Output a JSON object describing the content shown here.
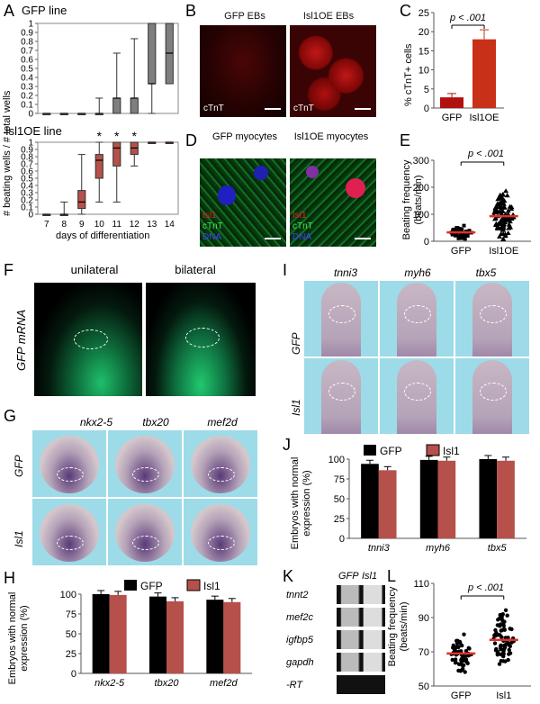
{
  "panels": {
    "A": {
      "letter": "A",
      "title_top": "GFP line",
      "title_bottom": "Isl1OE line",
      "ylabel": "# beating wells / # total wells",
      "xlabel": "days of differentiation",
      "days": [
        "7",
        "8",
        "9",
        "10",
        "11",
        "12",
        "13",
        "14"
      ],
      "yticks": [
        "0",
        "0.1",
        "0.2",
        "0.3",
        "0.4",
        "0.5",
        "0.6",
        "0.7",
        "0.8",
        "0.9",
        "1"
      ],
      "star": "*"
    },
    "B": {
      "letter": "B",
      "label_left": "GFP EBs",
      "label_right": "Isl1OE EBs",
      "stain": "cTnT"
    },
    "C": {
      "letter": "C",
      "ylabel": "% cTnT+ cells",
      "p": "p < .001",
      "cats": [
        "GFP",
        "Isl1OE"
      ]
    },
    "D": {
      "letter": "D",
      "label_left": "GFP myocytes",
      "label_right": "Isl1OE myocytes",
      "stain1": "Isl1",
      "stain2": "cTnT",
      "stain3": "DNA"
    },
    "E": {
      "letter": "E",
      "ylabel": "Beating frequency (beats/min)",
      "p": "p < .001",
      "cats": [
        "GFP",
        "Isl1OE"
      ]
    },
    "F": {
      "letter": "F",
      "label_left": "unilateral",
      "label_right": "bilateral",
      "ylabel": "GFP mRNA"
    },
    "G": {
      "letter": "G",
      "genes": [
        "nkx2-5",
        "tbx20",
        "mef2d"
      ],
      "rows": [
        "GFP",
        "Isl1"
      ]
    },
    "H": {
      "letter": "H",
      "ylabel": "Embryos with normal expression (%)",
      "legend": [
        "GFP",
        "Isl1"
      ]
    },
    "I": {
      "letter": "I",
      "genes": [
        "tnni3",
        "myh6",
        "tbx5"
      ],
      "rows": [
        "GFP",
        "Isl1"
      ]
    },
    "J": {
      "letter": "J",
      "ylabel": "Embryos with normal expression (%)",
      "legend": [
        "GFP",
        "Isl1"
      ]
    },
    "K": {
      "letter": "K",
      "cols": [
        "GFP",
        "Isl1"
      ],
      "rows": [
        "tnnt2",
        "mef2c",
        "igfbp5",
        "gapdh",
        "-RT"
      ]
    },
    "L": {
      "letter": "L",
      "ylabel": "Beating frequency (beats/min)",
      "p": "p < .001",
      "cats": [
        "GFP",
        "Isl1"
      ]
    }
  },
  "chart_data": [
    {
      "panel": "A-top",
      "type": "box",
      "categories": [
        "7",
        "8",
        "9",
        "10",
        "11",
        "12",
        "13",
        "14"
      ],
      "boxes": [
        [
          0,
          0,
          0,
          0,
          0
        ],
        [
          0,
          0,
          0,
          0,
          0
        ],
        [
          0,
          0,
          0,
          0,
          0
        ],
        [
          0,
          0,
          0,
          0,
          0.17
        ],
        [
          0,
          0,
          0.17,
          0.17,
          0.67
        ],
        [
          0,
          0,
          0.17,
          0.17,
          0.83
        ],
        [
          0,
          0.33,
          0.33,
          1,
          1
        ],
        [
          0.33,
          0.33,
          0.67,
          1,
          1
        ]
      ],
      "ylim": [
        0,
        1
      ]
    },
    {
      "panel": "A-bottom",
      "type": "box",
      "categories": [
        "7",
        "8",
        "9",
        "10",
        "11",
        "12",
        "13",
        "14"
      ],
      "boxes": [
        [
          0,
          0,
          0,
          0,
          0
        ],
        [
          0,
          0,
          0,
          0,
          0.17
        ],
        [
          0,
          0.08,
          0.17,
          0.33,
          0.83
        ],
        [
          0.17,
          0.5,
          0.75,
          0.83,
          1
        ],
        [
          0.17,
          0.67,
          0.92,
          1,
          1
        ],
        [
          0.67,
          0.83,
          0.92,
          1,
          1
        ],
        [
          1,
          1,
          1,
          1,
          1
        ],
        [
          1,
          1,
          1,
          1,
          1
        ]
      ],
      "stars": [
        "10",
        "11",
        "12"
      ],
      "ylim": [
        0,
        1
      ]
    },
    {
      "panel": "C",
      "type": "bar",
      "categories": [
        "GFP",
        "Isl1OE"
      ],
      "values": [
        2.8,
        18
      ],
      "errors": [
        1,
        2.5
      ],
      "colors": [
        "#b01010",
        "#c83018"
      ],
      "yticks": [
        0,
        5,
        10,
        15,
        20,
        25
      ],
      "ylim": [
        0,
        25
      ]
    },
    {
      "panel": "E",
      "type": "scatter",
      "categories": [
        "GFP",
        "Isl1OE"
      ],
      "means": [
        33,
        93
      ],
      "yticks": [
        0,
        100,
        200,
        300
      ],
      "ylim": [
        0,
        300
      ]
    },
    {
      "panel": "H",
      "type": "bar",
      "categories": [
        "nkx2-5",
        "tbx20",
        "mef2d"
      ],
      "series": [
        {
          "name": "GFP",
          "values": [
            100,
            97,
            93
          ]
        },
        {
          "name": "Isl1",
          "values": [
            99,
            91,
            90
          ]
        }
      ],
      "yticks": [
        0,
        25,
        50,
        75,
        100
      ],
      "ylim": [
        0,
        100
      ]
    },
    {
      "panel": "J",
      "type": "bar",
      "categories": [
        "tnni3",
        "myh6",
        "tbx5"
      ],
      "series": [
        {
          "name": "GFP",
          "values": [
            94,
            99,
            100
          ]
        },
        {
          "name": "Isl1",
          "values": [
            86,
            98,
            98
          ]
        }
      ],
      "yticks": [
        0,
        25,
        50,
        75,
        100
      ],
      "ylim": [
        0,
        100
      ]
    },
    {
      "panel": "L",
      "type": "scatter",
      "categories": [
        "GFP",
        "Isl1"
      ],
      "means": [
        69,
        77
      ],
      "yticks": [
        50,
        70,
        90,
        110
      ],
      "ylim": [
        50,
        110
      ]
    }
  ],
  "colors": {
    "gfp_bar": "#000000",
    "isl1_bar": "#b5504a",
    "scatter_mean": "#e0302a",
    "box": "#7f7f7f",
    "box_red": "#b5504a",
    "embryo_bg": "#9ddbe8"
  }
}
